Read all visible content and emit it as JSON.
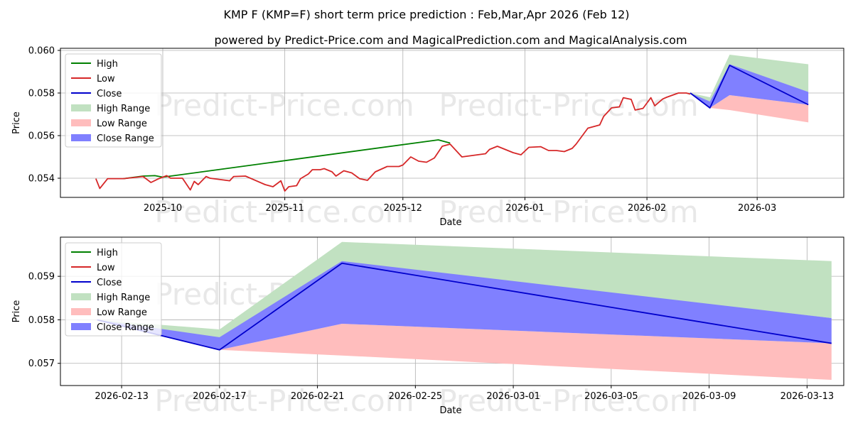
{
  "title": "KMP F (KMP=F) short term price prediction : Feb,Mar,Apr 2026 (Feb 12)",
  "subtitle": "powered by Predict-Price.com and MagicalPrediction.com and MagicalAnalysis.com",
  "watermark": "Predict-Price.com",
  "colors": {
    "high": "#008000",
    "low": "#d62728",
    "close": "#0000cc",
    "high_range": "#c1e1c1",
    "low_range": "#ffbdbd",
    "close_range": "#8080ff",
    "grid": "#b0b0b0"
  },
  "legend": [
    "High",
    "Low",
    "Close",
    "High Range",
    "Low Range",
    "Close Range"
  ],
  "chart_data": [
    {
      "type": "line",
      "title": "",
      "xlabel": "Date",
      "ylabel": "Price",
      "xlim": [
        "2025-09-05",
        "2026-03-23"
      ],
      "ylim": [
        0.0531,
        0.0601
      ],
      "yticks": [
        0.054,
        0.056,
        0.058,
        0.06
      ],
      "ytick_labels": [
        "0.054",
        "0.056",
        "0.058",
        "0.060"
      ],
      "xticks": [
        "2025-10-01",
        "2025-11-01",
        "2025-12-01",
        "2026-01-01",
        "2026-02-01",
        "2026-03-01"
      ],
      "xtick_labels": [
        "2025-10",
        "2025-11",
        "2025-12",
        "2026-01",
        "2026-02",
        "2026-03"
      ],
      "grid": true,
      "legend_position": "top-left",
      "series": [
        {
          "name": "High",
          "x": [
            "2025-09-21",
            "2025-09-26",
            "2025-09-29",
            "2025-10-01",
            "2025-12-10",
            "2025-12-13"
          ],
          "values": [
            0.05398,
            0.0541,
            0.05412,
            0.05405,
            0.0558,
            0.05565
          ]
        },
        {
          "name": "Low",
          "x": [
            "2025-09-14",
            "2025-09-15",
            "2025-09-17",
            "2025-09-18",
            "2025-09-21",
            "2025-09-26",
            "2025-09-28",
            "2025-09-30",
            "2025-10-02",
            "2025-10-03",
            "2025-10-06",
            "2025-10-08",
            "2025-10-09",
            "2025-10-10",
            "2025-10-12",
            "2025-10-13",
            "2025-10-18",
            "2025-10-19",
            "2025-10-22",
            "2025-10-27",
            "2025-10-29",
            "2025-10-31",
            "2025-11-01",
            "2025-11-02",
            "2025-11-04",
            "2025-11-05",
            "2025-11-07",
            "2025-11-08",
            "2025-11-10",
            "2025-11-11",
            "2025-11-13",
            "2025-11-14",
            "2025-11-16",
            "2025-11-18",
            "2025-11-20",
            "2025-11-22",
            "2025-11-24",
            "2025-11-27",
            "2025-11-30",
            "2025-12-01",
            "2025-12-03",
            "2025-12-05",
            "2025-12-07",
            "2025-12-09",
            "2025-12-11",
            "2025-12-13",
            "2025-12-15",
            "2025-12-16",
            "2025-12-18",
            "2025-12-20",
            "2025-12-22",
            "2025-12-23",
            "2025-12-25",
            "2025-12-29",
            "2025-12-31",
            "2026-01-02",
            "2026-01-05",
            "2026-01-07",
            "2026-01-09",
            "2026-01-11",
            "2026-01-13",
            "2026-01-14",
            "2026-01-15",
            "2026-01-17",
            "2026-01-18",
            "2026-01-20",
            "2026-01-21",
            "2026-01-23",
            "2026-01-25",
            "2026-01-26",
            "2026-01-28",
            "2026-01-29",
            "2026-01-31",
            "2026-02-02",
            "2026-02-03",
            "2026-02-05",
            "2026-02-06",
            "2026-02-09",
            "2026-02-11",
            "2026-02-12"
          ],
          "values": [
            0.05398,
            0.05352,
            0.05398,
            0.05398,
            0.05398,
            0.05408,
            0.0538,
            0.05398,
            0.05412,
            0.054,
            0.054,
            0.05345,
            0.05385,
            0.0537,
            0.05408,
            0.054,
            0.05388,
            0.05408,
            0.0541,
            0.0537,
            0.0536,
            0.05388,
            0.0534,
            0.0536,
            0.05365,
            0.05398,
            0.0542,
            0.0544,
            0.0544,
            0.05445,
            0.0543,
            0.0541,
            0.05435,
            0.05425,
            0.05398,
            0.0539,
            0.0543,
            0.05455,
            0.05455,
            0.05462,
            0.055,
            0.0548,
            0.05475,
            0.05495,
            0.0555,
            0.0556,
            0.0552,
            0.055,
            0.05505,
            0.0551,
            0.05515,
            0.05535,
            0.0555,
            0.0552,
            0.0551,
            0.05545,
            0.05548,
            0.0553,
            0.0553,
            0.05525,
            0.0554,
            0.0556,
            0.05585,
            0.05635,
            0.0564,
            0.0565,
            0.0569,
            0.0573,
            0.05735,
            0.05778,
            0.0577,
            0.0572,
            0.05728,
            0.05778,
            0.0574,
            0.05772,
            0.0578,
            0.058,
            0.058,
            0.05795
          ]
        },
        {
          "name": "Close",
          "x": [
            "2026-02-12",
            "2026-02-17",
            "2026-02-22",
            "2026-03-14"
          ],
          "values": [
            0.058,
            0.0573,
            0.0593,
            0.05745
          ]
        },
        {
          "name": "High Range",
          "x": [
            "2026-02-12",
            "2026-02-17",
            "2026-02-22",
            "2026-03-14"
          ],
          "upper": [
            0.058,
            0.0578,
            0.0598,
            0.05935
          ],
          "lower": [
            0.058,
            0.0573,
            0.0593,
            0.05805
          ]
        },
        {
          "name": "Low Range",
          "x": [
            "2026-02-12",
            "2026-02-17",
            "2026-02-22",
            "2026-03-14"
          ],
          "upper": [
            0.058,
            0.0573,
            0.0579,
            0.05745
          ],
          "lower": [
            0.058,
            0.0573,
            0.0572,
            0.05662
          ]
        },
        {
          "name": "Close Range",
          "x": [
            "2026-02-12",
            "2026-02-17",
            "2026-02-22",
            "2026-03-14"
          ],
          "upper": [
            0.058,
            0.0576,
            0.05935,
            0.05805
          ],
          "lower": [
            0.058,
            0.0573,
            0.0579,
            0.05745
          ]
        }
      ]
    },
    {
      "type": "line",
      "title": "",
      "xlabel": "Date",
      "ylabel": "Price",
      "xlim": [
        "2026-02-10.5",
        "2026-03-14.5"
      ],
      "ylim": [
        0.05649,
        0.0599
      ],
      "yticks": [
        0.057,
        0.058,
        0.059
      ],
      "ytick_labels": [
        "0.057",
        "0.058",
        "0.059"
      ],
      "xticks": [
        "2026-02-13",
        "2026-02-17",
        "2026-02-21",
        "2026-02-25",
        "2026-03-01",
        "2026-03-05",
        "2026-03-09",
        "2026-03-13"
      ],
      "xtick_labels": [
        "2026-02-13",
        "2026-02-17",
        "2026-02-21",
        "2026-02-25",
        "2026-03-01",
        "2026-03-05",
        "2026-03-09",
        "2026-03-13"
      ],
      "grid": true,
      "legend_position": "top-left",
      "series": [
        {
          "name": "Close",
          "x": [
            "2026-02-12",
            "2026-02-17",
            "2026-02-22",
            "2026-03-14"
          ],
          "values": [
            0.058,
            0.05731,
            0.0593,
            0.05746
          ]
        },
        {
          "name": "High Range",
          "x": [
            "2026-02-12",
            "2026-02-17",
            "2026-02-22",
            "2026-03-14"
          ],
          "upper": [
            0.058,
            0.05778,
            0.05979,
            0.05935
          ],
          "lower": [
            0.058,
            0.05731,
            0.0593,
            0.05804
          ]
        },
        {
          "name": "Low Range",
          "x": [
            "2026-02-12",
            "2026-02-17",
            "2026-02-22",
            "2026-03-14"
          ],
          "upper": [
            0.058,
            0.05731,
            0.05791,
            0.05746
          ],
          "lower": [
            0.058,
            0.05731,
            0.05718,
            0.05662
          ]
        },
        {
          "name": "Close Range",
          "x": [
            "2026-02-12",
            "2026-02-17",
            "2026-02-22",
            "2026-03-14"
          ],
          "upper": [
            0.058,
            0.0576,
            0.05935,
            0.05804
          ],
          "lower": [
            0.058,
            0.05731,
            0.05791,
            0.05746
          ]
        }
      ]
    }
  ]
}
